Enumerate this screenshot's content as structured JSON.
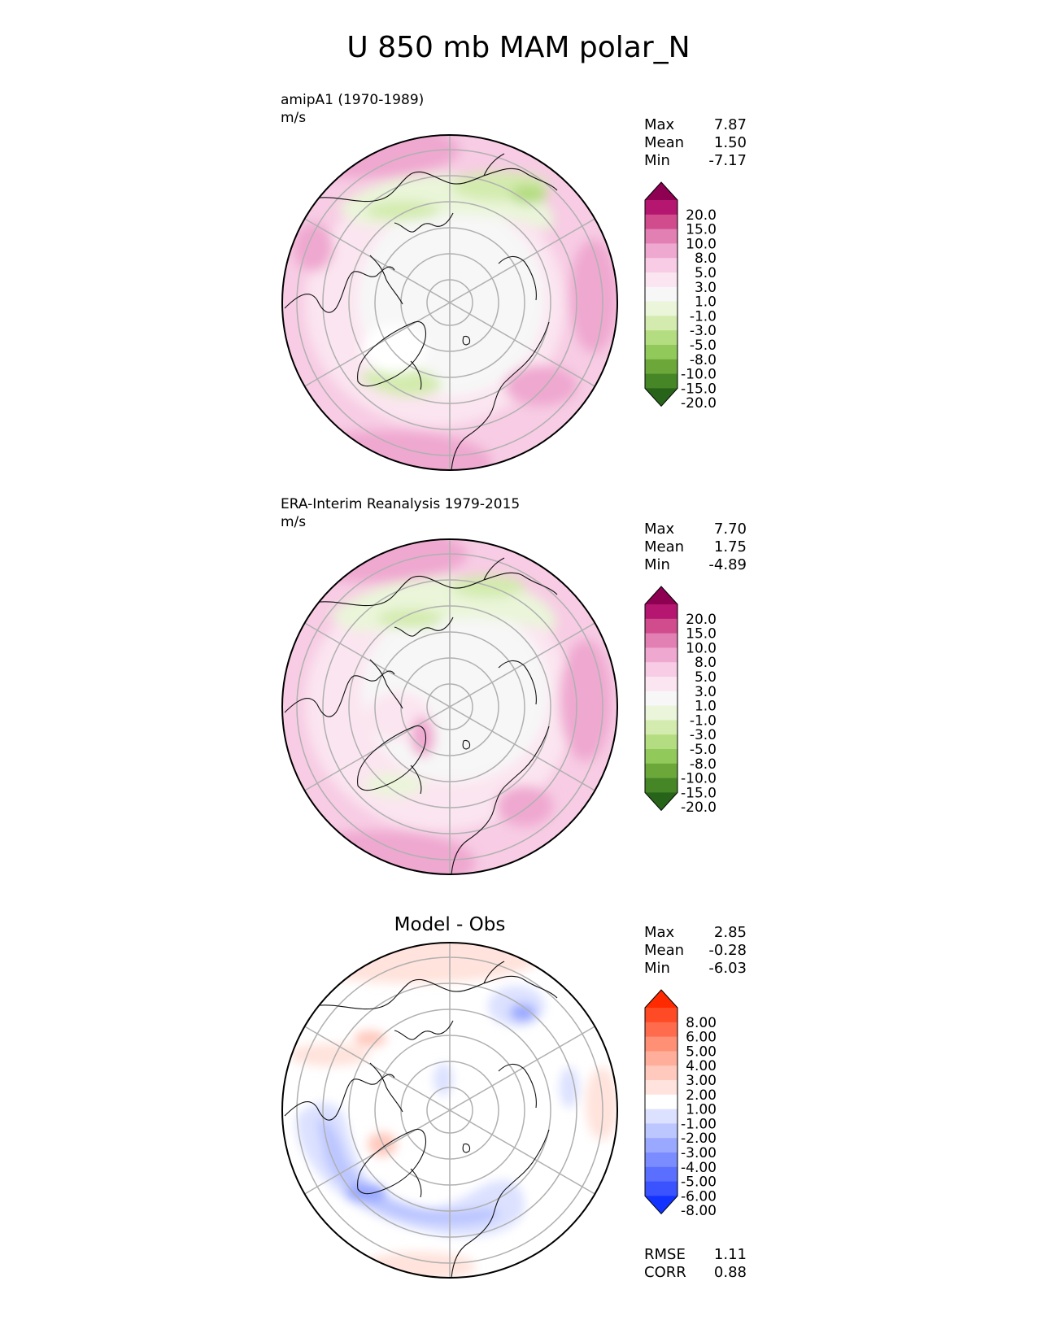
{
  "figure": {
    "title": "U 850 mb MAM polar_N"
  },
  "chart_data": [
    {
      "type": "heatmap",
      "projection": "north polar stereographic",
      "title": "amipA1 (1970-1989)",
      "units": "m/s",
      "stats": [
        {
          "label": "Max",
          "value": "7.87"
        },
        {
          "label": "Mean",
          "value": "1.50"
        },
        {
          "label": "Min",
          "value": "-7.17"
        }
      ],
      "colorbar": {
        "levels": [
          "20.0",
          "15.0",
          "10.0",
          "8.0",
          "5.0",
          "3.0",
          "1.0",
          "-1.0",
          "-3.0",
          "-5.0",
          "-8.0",
          "-10.0",
          "-15.0",
          "-20.0"
        ],
        "colors": [
          "#8e0152",
          "#b5166f",
          "#d14c8d",
          "#e27fb3",
          "#efa8d0",
          "#f7cce4",
          "#fbe5f0",
          "#f7f7f7",
          "#eaf5d9",
          "#d3ebae",
          "#b4dc80",
          "#91c95a",
          "#6ba739",
          "#468627",
          "#276419"
        ]
      }
    },
    {
      "type": "heatmap",
      "projection": "north polar stereographic",
      "title": "ERA-Interim Reanalysis 1979-2015",
      "units": "m/s",
      "stats": [
        {
          "label": "Max",
          "value": "7.70"
        },
        {
          "label": "Mean",
          "value": "1.75"
        },
        {
          "label": "Min",
          "value": "-4.89"
        }
      ],
      "colorbar": {
        "levels": [
          "20.0",
          "15.0",
          "10.0",
          "8.0",
          "5.0",
          "3.0",
          "1.0",
          "-1.0",
          "-3.0",
          "-5.0",
          "-8.0",
          "-10.0",
          "-15.0",
          "-20.0"
        ],
        "colors": [
          "#8e0152",
          "#b5166f",
          "#d14c8d",
          "#e27fb3",
          "#efa8d0",
          "#f7cce4",
          "#fbe5f0",
          "#f7f7f7",
          "#eaf5d9",
          "#d3ebae",
          "#b4dc80",
          "#91c95a",
          "#6ba739",
          "#468627",
          "#276419"
        ]
      }
    },
    {
      "type": "heatmap",
      "projection": "north polar stereographic",
      "title": "Model - Obs",
      "units": "",
      "stats": [
        {
          "label": "Max",
          "value": "2.85"
        },
        {
          "label": "Mean",
          "value": "-0.28"
        },
        {
          "label": "Min",
          "value": "-6.03"
        }
      ],
      "extra_stats": [
        {
          "label": "RMSE",
          "value": "1.11"
        },
        {
          "label": "CORR",
          "value": "0.88"
        }
      ],
      "colorbar": {
        "levels": [
          "8.00",
          "6.00",
          "5.00",
          "4.00",
          "3.00",
          "2.00",
          "1.00",
          "-1.00",
          "-2.00",
          "-3.00",
          "-4.00",
          "-5.00",
          "-6.00",
          "-8.00"
        ],
        "colors": [
          "#ff2a00",
          "#ff4a26",
          "#ff6b4d",
          "#ff8f75",
          "#ffae9b",
          "#ffc9bd",
          "#ffe3dc",
          "#ffffff",
          "#dce1ff",
          "#bcc6ff",
          "#9aa9ff",
          "#7a8cff",
          "#5a6fff",
          "#3b52ff",
          "#1233ff"
        ]
      }
    }
  ]
}
